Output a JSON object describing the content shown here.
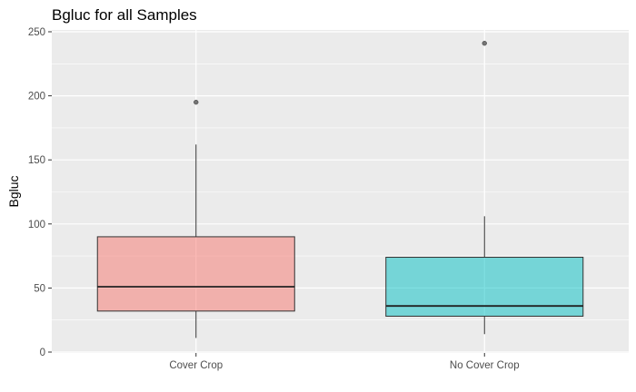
{
  "chart_data": {
    "type": "boxplot",
    "title": "Bgluc for all Samples",
    "xlabel": "",
    "ylabel": "Bgluc",
    "ylim": [
      0,
      250
    ],
    "yticks": [
      0,
      50,
      100,
      150,
      200,
      250
    ],
    "grid": true,
    "legend": "none",
    "categories": [
      "Cover Crop",
      "No Cover Crop"
    ],
    "boxes": [
      {
        "category": "Cover Crop",
        "whisker_low": 11,
        "q1": 32,
        "median": 51,
        "q3": 90,
        "whisker_high": 162,
        "outliers": [
          195
        ],
        "color": "#F8766D"
      },
      {
        "category": "No Cover Crop",
        "whisker_low": 14,
        "q1": 28,
        "median": 36,
        "q3": 74,
        "whisker_high": 106,
        "outliers": [
          241
        ],
        "color": "#00BFC4"
      }
    ]
  },
  "colors": {
    "panel_background": "#EBEBEB",
    "gridline": "#FFFFFF",
    "box_outline": "#333333",
    "outlier": "#555555"
  }
}
